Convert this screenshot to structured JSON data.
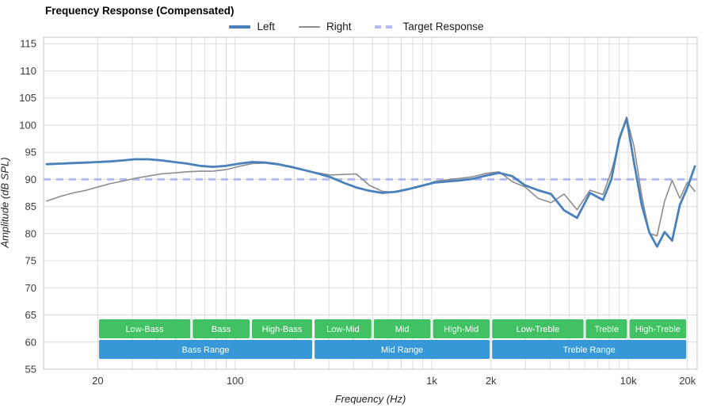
{
  "title": "Frequency Response (Compensated)",
  "legend": [
    {
      "label": "Left",
      "color": "#4a81ba",
      "style": "solid",
      "weight": 4
    },
    {
      "label": "Right",
      "color": "#8c8c8c",
      "style": "solid",
      "weight": 2
    },
    {
      "label": "Target Response",
      "color": "#b5baf5",
      "style": "dashed",
      "weight": 4
    }
  ],
  "chart_data": {
    "type": "line",
    "title": "Frequency Response (Compensated)",
    "xlabel": "Frequency (Hz)",
    "ylabel": "Amplitude (dB SPL)",
    "x_scale": "log",
    "xlim": [
      10.6,
      22400
    ],
    "ylim": [
      55,
      116.2
    ],
    "grid": true,
    "legend_position": "top-center",
    "x_ticks": [
      {
        "value": 20,
        "label": "20"
      },
      {
        "value": 100,
        "label": "100"
      },
      {
        "value": 1000,
        "label": "1k"
      },
      {
        "value": 2000,
        "label": "2k"
      },
      {
        "value": 10000,
        "label": "10k"
      },
      {
        "value": 20000,
        "label": "20k"
      }
    ],
    "y_ticks": [
      {
        "value": 55,
        "label": "55"
      },
      {
        "value": 60,
        "label": "60"
      },
      {
        "value": 65,
        "label": "65"
      },
      {
        "value": 70,
        "label": "70"
      },
      {
        "value": 75,
        "label": "75"
      },
      {
        "value": 80,
        "label": "80"
      },
      {
        "value": 85,
        "label": "85"
      },
      {
        "value": 90,
        "label": "90"
      },
      {
        "value": 95,
        "label": "95"
      },
      {
        "value": 100,
        "label": "100"
      },
      {
        "value": 105,
        "label": "105"
      },
      {
        "value": 110,
        "label": "110"
      },
      {
        "value": 115,
        "label": "115"
      }
    ],
    "target": {
      "label": "Target Response",
      "value": 90,
      "color": "#b5baf5"
    },
    "x": [
      11,
      13,
      15,
      17.5,
      20,
      23,
      27,
      31,
      36,
      42,
      49,
      57,
      66,
      77,
      90,
      105,
      122,
      142,
      165,
      193,
      225,
      262,
      305,
      355,
      413,
      481,
      560,
      652,
      759,
      884,
      1029,
      1198,
      1395,
      1624,
      1891,
      2202,
      2564,
      2985,
      3475,
      4046,
      4711,
      5485,
      6386,
      7435,
      8200,
      9000,
      9800,
      10700,
      11700,
      12800,
      14000,
      15300,
      16700,
      18300,
      20000,
      21800
    ],
    "series": [
      {
        "name": "Left",
        "color": "#4a81ba",
        "width": 2.8,
        "values": [
          92.8,
          92.9,
          93.0,
          93.1,
          93.2,
          93.3,
          93.5,
          93.7,
          93.7,
          93.5,
          93.2,
          92.9,
          92.5,
          92.3,
          92.5,
          92.9,
          93.2,
          93.1,
          92.8,
          92.3,
          91.7,
          91.1,
          90.4,
          89.4,
          88.5,
          87.9,
          87.5,
          87.7,
          88.2,
          88.8,
          89.4,
          89.6,
          89.8,
          90.1,
          90.7,
          91.2,
          90.6,
          88.9,
          88.0,
          87.3,
          84.3,
          82.9,
          87.5,
          86.2,
          90.0,
          97.5,
          101.2,
          93.0,
          85.3,
          80.2,
          77.6,
          80.3,
          78.7,
          85.3,
          88.5,
          92.4
        ]
      },
      {
        "name": "Right",
        "color": "#8c8c8c",
        "width": 1.6,
        "values": [
          86.0,
          86.9,
          87.5,
          88.0,
          88.6,
          89.2,
          89.7,
          90.2,
          90.6,
          91.0,
          91.2,
          91.4,
          91.5,
          91.5,
          91.8,
          92.4,
          92.9,
          93.0,
          92.7,
          92.2,
          91.7,
          91.2,
          90.8,
          90.9,
          91.0,
          88.9,
          87.8,
          87.6,
          88.1,
          88.7,
          89.6,
          89.9,
          90.2,
          90.5,
          91.1,
          91.4,
          89.6,
          88.6,
          86.5,
          85.7,
          87.3,
          84.4,
          88.0,
          87.2,
          91.5,
          97.0,
          101.5,
          96.0,
          87.0,
          80.0,
          79.6,
          86.0,
          89.8,
          86.5,
          89.5,
          87.8
        ]
      }
    ],
    "bands": {
      "sub_color": "#41c163",
      "main_color": "#3798d8",
      "band_text_color": "#ffffff",
      "sub_db": [
        60.7,
        64.2
      ],
      "main_db": [
        56.9,
        60.4
      ],
      "sub": [
        {
          "label": "Low-Bass",
          "from": 20,
          "to": 60
        },
        {
          "label": "Bass",
          "from": 60,
          "to": 120
        },
        {
          "label": "High-Bass",
          "from": 120,
          "to": 250
        },
        {
          "label": "Low-Mid",
          "from": 250,
          "to": 500
        },
        {
          "label": "Mid",
          "from": 500,
          "to": 1000
        },
        {
          "label": "High-Mid",
          "from": 1000,
          "to": 2000
        },
        {
          "label": "Low-Treble",
          "from": 2000,
          "to": 6000
        },
        {
          "label": "Treble",
          "from": 6000,
          "to": 10000
        },
        {
          "label": "High-Treble",
          "from": 10000,
          "to": 20000
        }
      ],
      "main": [
        {
          "label": "Bass Range",
          "from": 20,
          "to": 250
        },
        {
          "label": "Mid Range",
          "from": 250,
          "to": 2000
        },
        {
          "label": "Treble Range",
          "from": 2000,
          "to": 20000
        }
      ]
    },
    "colors": {
      "grid": "#dcdcdc",
      "frame": "#c4c4c4",
      "tick": "#3a3a3a"
    }
  }
}
